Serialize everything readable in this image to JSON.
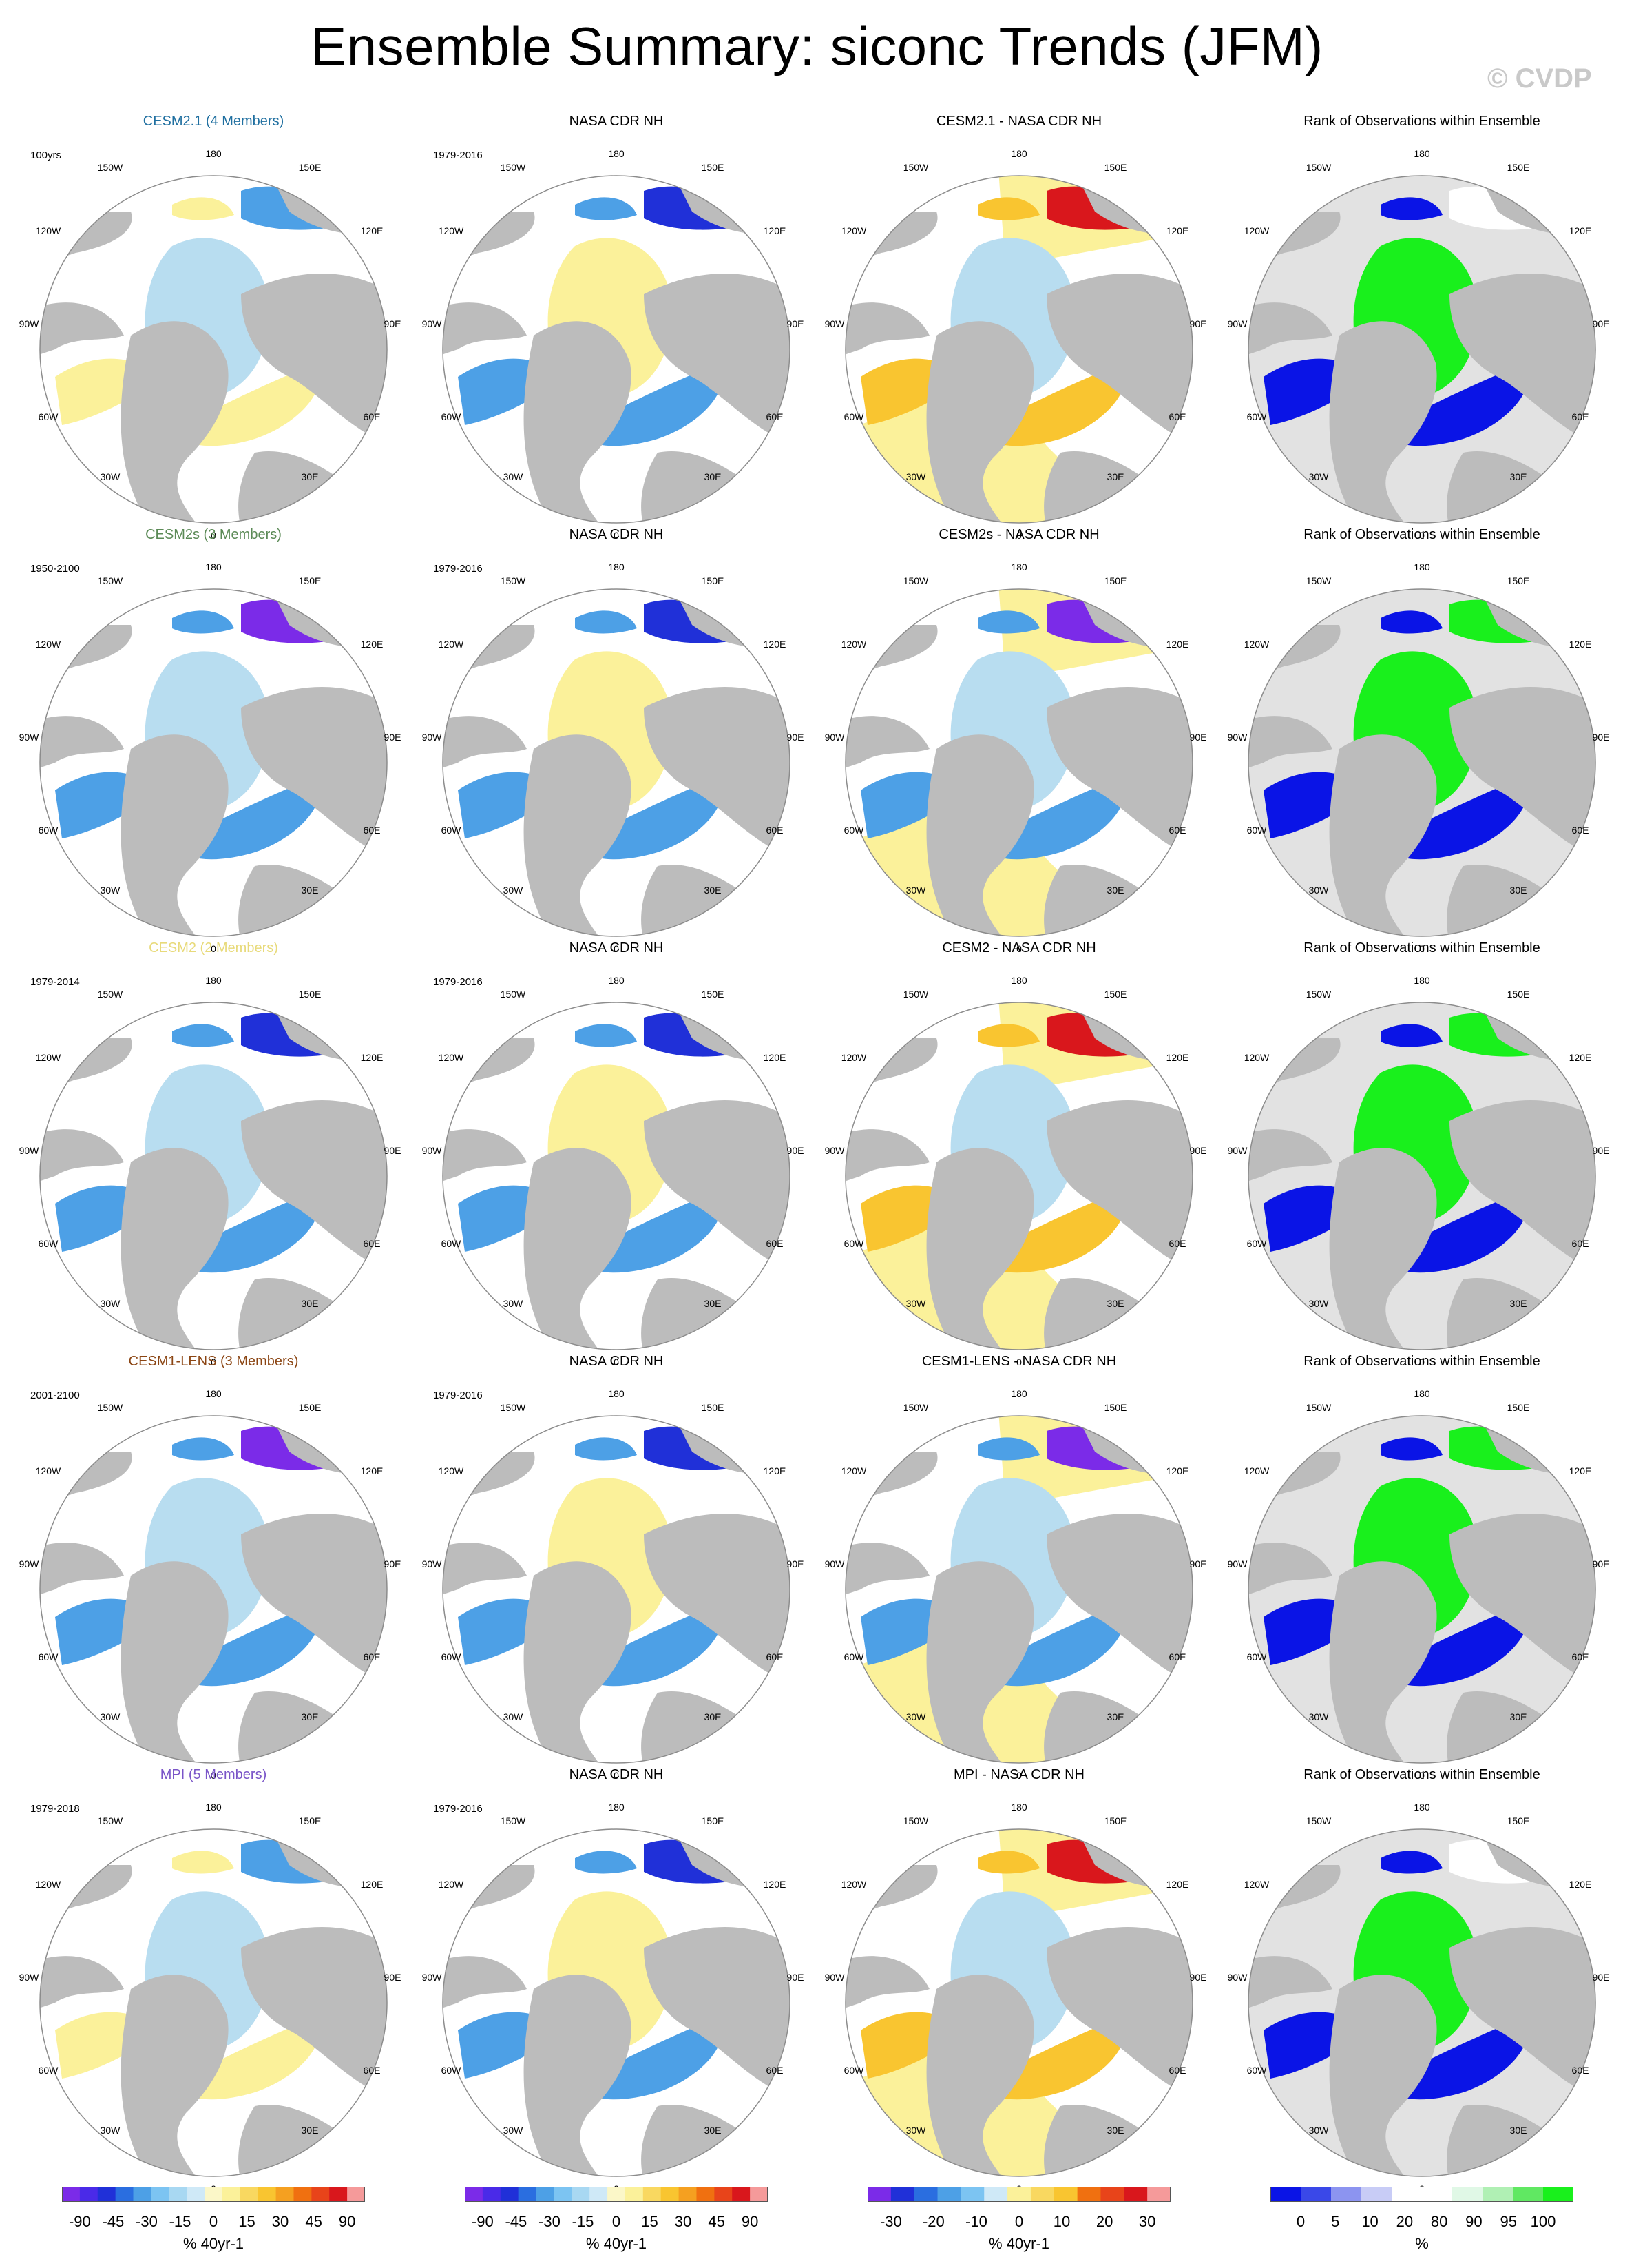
{
  "title": "Ensemble Summary: siconc Trends (JFM)",
  "copyright": "© CVDP",
  "geo_labels": {
    "top": "180",
    "bottom": "0",
    "l1": "150W",
    "l2": "120W",
    "l3": "90W",
    "l4": "60W",
    "l5": "30W",
    "r1": "150E",
    "r2": "120E",
    "r3": "90E",
    "r4": "60E",
    "r5": "30E"
  },
  "colors": {
    "land": "#bcbcbc",
    "ocean": "#ffffff",
    "rank_ocean": "#e2e2e2",
    "neg_light": "#b8ddf0",
    "neg_mid": "#4da0e6",
    "neg_dark": "#2030d8",
    "neg_deep": "#7b2be8",
    "pos_light": "#fbf19a",
    "pos_mid": "#f9c530",
    "pos_dark": "#f07010",
    "pos_deep": "#d9171c",
    "rank_low": "#0a14e6",
    "rank_high": "#19f01c"
  },
  "rows": [
    {
      "ensemble": {
        "title": "CESM2.1 (4 Members)",
        "color": "#1f6fa0",
        "period": "100yrs",
        "style": "weak"
      },
      "obs": {
        "title": "NASA CDR NH",
        "period": "1979-2016"
      },
      "diff": {
        "title": "CESM2.1 - NASA CDR NH",
        "style": "mixed"
      },
      "rank": {
        "title": "Rank of Observations within Ensemble",
        "style": "mostly_low"
      }
    },
    {
      "ensemble": {
        "title": "CESM2s (3 Members)",
        "color": "#5b8a56",
        "period": "1950-2100",
        "style": "strong"
      },
      "obs": {
        "title": "NASA CDR NH",
        "period": "1979-2016"
      },
      "diff": {
        "title": "CESM2s - NASA CDR NH",
        "style": "neg"
      },
      "rank": {
        "title": "Rank of Observations within Ensemble",
        "style": "mostly_high"
      }
    },
    {
      "ensemble": {
        "title": "CESM2 (2 Members)",
        "color": "#e8da7a",
        "period": "1979-2014",
        "style": "moderate"
      },
      "obs": {
        "title": "NASA CDR NH",
        "period": "1979-2016"
      },
      "diff": {
        "title": "CESM2 - NASA CDR NH",
        "style": "mixed"
      },
      "rank": {
        "title": "Rank of Observations within Ensemble",
        "style": "mixed"
      }
    },
    {
      "ensemble": {
        "title": "CESM1-LENS (3 Members)",
        "color": "#8b4513",
        "period": "2001-2100",
        "style": "strong"
      },
      "obs": {
        "title": "NASA CDR NH",
        "period": "1979-2016"
      },
      "diff": {
        "title": "CESM1-LENS - NASA CDR NH",
        "style": "neg"
      },
      "rank": {
        "title": "Rank of Observations within Ensemble",
        "style": "mostly_high"
      }
    },
    {
      "ensemble": {
        "title": "MPI (5 Members)",
        "color": "#7a55c8",
        "period": "1979-2018",
        "style": "weak"
      },
      "obs": {
        "title": "NASA CDR NH",
        "period": "1979-2016"
      },
      "diff": {
        "title": "MPI - NASA CDR NH",
        "style": "mixed"
      },
      "rank": {
        "title": "Rank of Observations within Ensemble",
        "style": "mixed_low"
      }
    }
  ],
  "colorbars": [
    {
      "units": "% 40yr-1",
      "labels": [
        "-90",
        "-45",
        "-30",
        "-15",
        "0",
        "15",
        "30",
        "45",
        "90"
      ],
      "colors": [
        "#7b2be8",
        "#4a2ae8",
        "#2030d8",
        "#2a6ee0",
        "#4da0e6",
        "#7cc4f2",
        "#a8d8f2",
        "#cfe9f7",
        "#fbf7c8",
        "#fbf19a",
        "#f9d860",
        "#f9c530",
        "#f5a020",
        "#f07010",
        "#e8441a",
        "#d9171c",
        "#f59a9a"
      ]
    },
    {
      "units": "% 40yr-1",
      "labels": [
        "-90",
        "-45",
        "-30",
        "-15",
        "0",
        "15",
        "30",
        "45",
        "90"
      ],
      "colors": [
        "#7b2be8",
        "#4a2ae8",
        "#2030d8",
        "#2a6ee0",
        "#4da0e6",
        "#7cc4f2",
        "#a8d8f2",
        "#cfe9f7",
        "#fbf7c8",
        "#fbf19a",
        "#f9d860",
        "#f9c530",
        "#f5a020",
        "#f07010",
        "#e8441a",
        "#d9171c",
        "#f59a9a"
      ]
    },
    {
      "units": "% 40yr-1",
      "labels": [
        "-30",
        "-20",
        "-10",
        "0",
        "10",
        "20",
        "30"
      ],
      "colors": [
        "#7b2be8",
        "#2030d8",
        "#2a6ee0",
        "#4da0e6",
        "#7cc4f2",
        "#cfe9f7",
        "#fbf19a",
        "#f9d860",
        "#f9c530",
        "#f07010",
        "#e8441a",
        "#d9171c",
        "#f59a9a"
      ]
    },
    {
      "units": "%",
      "labels": [
        "0",
        "5",
        "10",
        "20",
        "80",
        "90",
        "95",
        "100"
      ],
      "colors": [
        "#0a14e6",
        "#3a48e8",
        "#8c94f0",
        "#c8ccf6",
        "#ffffff",
        "#ffffff",
        "#e0f8e6",
        "#b0f0b4",
        "#60e862",
        "#19f01c"
      ]
    }
  ]
}
